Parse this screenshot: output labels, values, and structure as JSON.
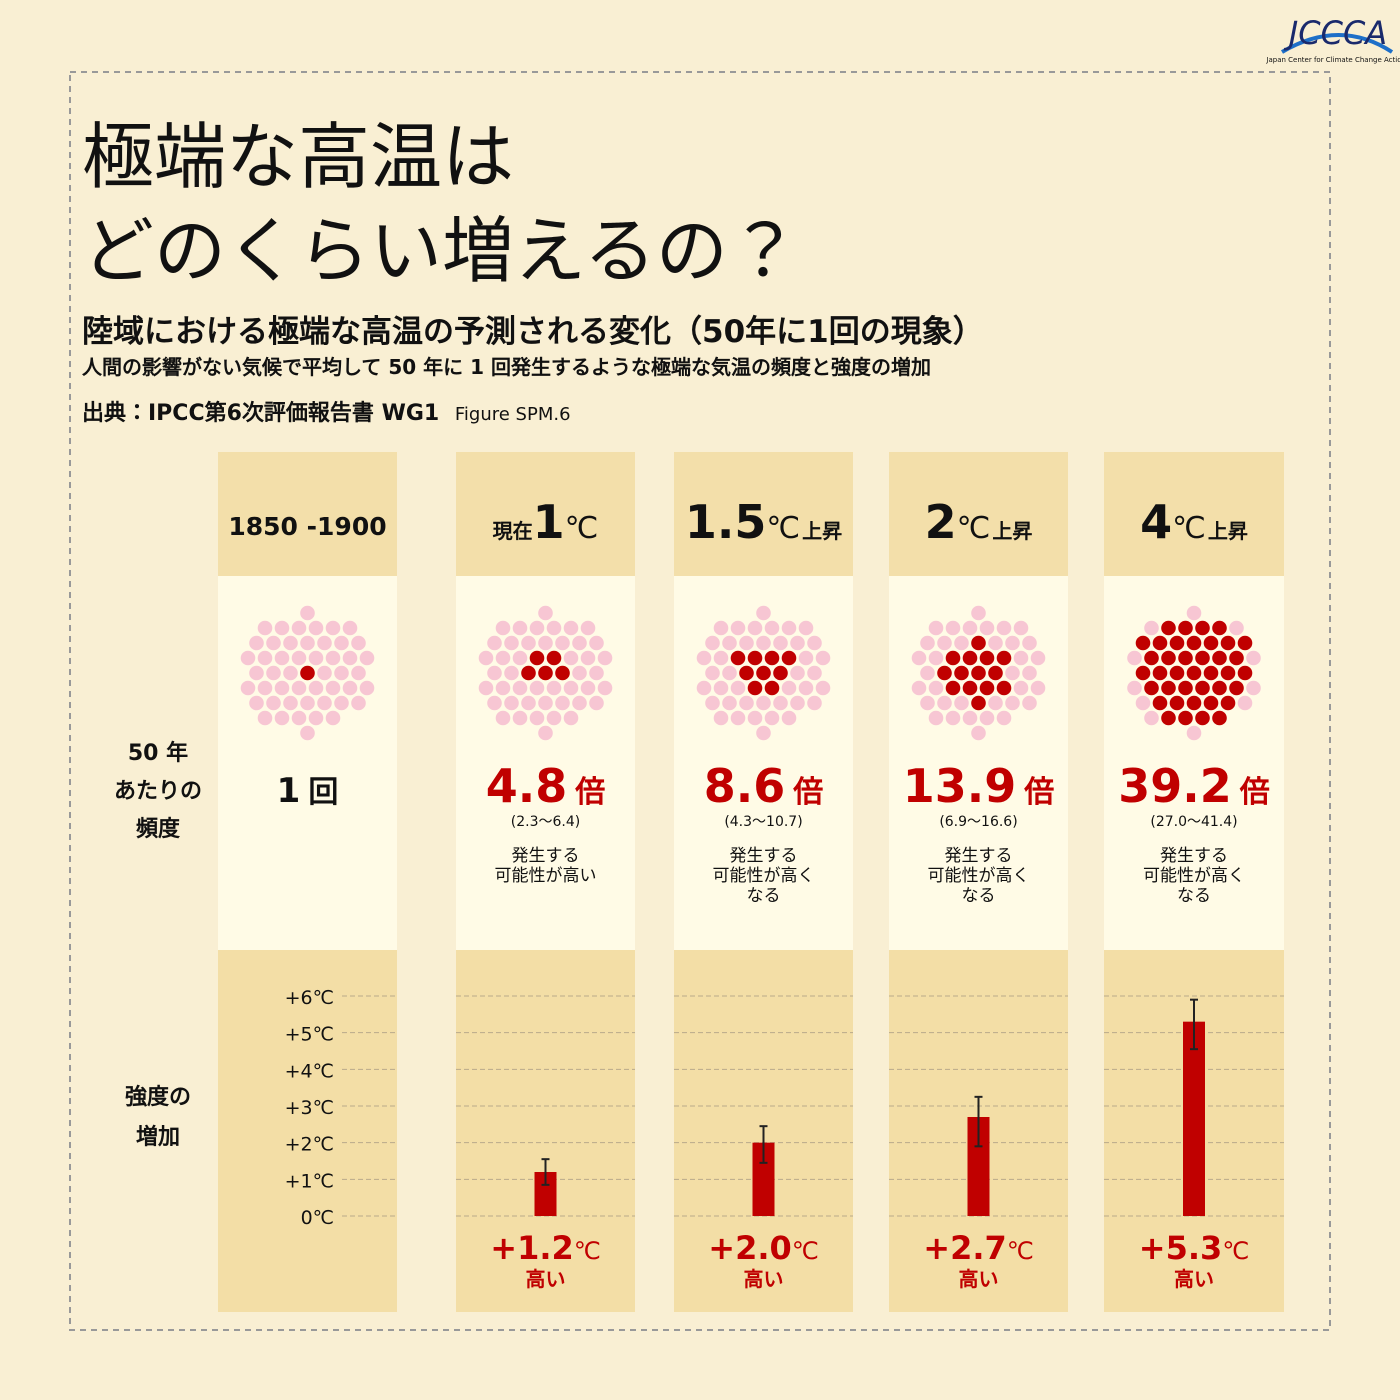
{
  "header": {
    "title": [
      "極端な高温は",
      "どのくらい増えるの？"
    ],
    "subtitle": "陸域における極端な高温の予測される変化（50年に1回の現象）",
    "description": "人間の影響がない気候で平均して 50 年に 1 回発生するような極端な気温の頻度と強度の増加",
    "source": "出典：IPCC第6次評価報告書 WG1",
    "figure": "Figure SPM.6"
  },
  "logo": {
    "name": "JCCCA",
    "caption": "Japan Center for Climate Change Actions"
  },
  "row_labels": {
    "frequency": [
      "50 年",
      "あたりの",
      "頻度"
    ],
    "intensity": [
      "強度の",
      "増加"
    ]
  },
  "dots_per_column": 50,
  "columns": [
    {
      "period": "1850 -1900",
      "frequency": 1,
      "frequency_unit": "回",
      "highlighted_dots": 1
    },
    {
      "prefix": "現在",
      "warming": 1,
      "unit": "℃",
      "frequency": 4.8,
      "frequency_unit": "倍",
      "range": "(2.3〜6.4)",
      "note": [
        "発生する",
        "可能性が高い"
      ],
      "highlighted_dots": 5
    },
    {
      "warming": 1.5,
      "unit": "℃",
      "suffix": "上昇",
      "frequency": 8.6,
      "frequency_unit": "倍",
      "range": "(4.3〜10.7)",
      "note": [
        "発生する",
        "可能性が高く",
        "なる"
      ],
      "highlighted_dots": 9
    },
    {
      "warming": 2,
      "unit": "℃",
      "suffix": "上昇",
      "frequency": 13.9,
      "frequency_unit": "倍",
      "range": "(6.9〜16.6)",
      "note": [
        "発生する",
        "可能性が高く",
        "なる"
      ],
      "highlighted_dots": 14
    },
    {
      "warming": 4,
      "unit": "℃",
      "suffix": "上昇",
      "frequency": 39.2,
      "frequency_unit": "倍",
      "range": "(27.0〜41.4)",
      "note": [
        "発生する",
        "可能性が高く",
        "なる"
      ],
      "highlighted_dots": 39
    }
  ],
  "chart_data": {
    "type": "bar",
    "values": [
      1.2,
      2.0,
      2.7,
      5.3
    ],
    "value_labels": [
      "+1.2",
      "+2.0",
      "+2.7",
      "+5.3"
    ],
    "value_unit": "℃",
    "value_note": "高い",
    "error_low": [
      0.85,
      1.45,
      1.9,
      4.55
    ],
    "error_high": [
      1.55,
      2.45,
      3.25,
      5.9
    ],
    "color": "#c00000",
    "ylim": [
      0,
      6
    ],
    "yticks": [
      {
        "value": 0,
        "label": "0℃"
      },
      {
        "value": 1,
        "label": "+1℃"
      },
      {
        "value": 2,
        "label": "+2℃"
      },
      {
        "value": 3,
        "label": "+3℃"
      },
      {
        "value": 4,
        "label": "+4℃"
      },
      {
        "value": 5,
        "label": "+5℃"
      },
      {
        "value": 6,
        "label": "+6℃"
      }
    ],
    "grid": true
  }
}
